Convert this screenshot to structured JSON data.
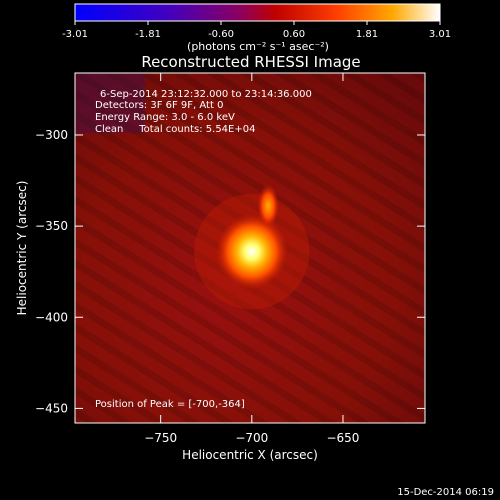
{
  "chart_data": {
    "type": "heatmap",
    "title": "Reconstructed RHESSI Image",
    "xlabel": "Heliocentric X (arcsec)",
    "ylabel": "Heliocentric Y (arcsec)",
    "xlim": [
      -797,
      -605
    ],
    "ylim": [
      -458,
      -266
    ],
    "x_ticks": [
      -750,
      -700,
      -650
    ],
    "y_ticks": [
      -300,
      -350,
      -400,
      -450
    ],
    "colorbar": {
      "label": "(photons cm⁻² s⁻¹ asec⁻²)",
      "range": [
        -3.01,
        3.01
      ],
      "ticks": [
        "-3.01",
        "-1.81",
        "-0.60",
        "0.60",
        "1.81",
        "3.01"
      ],
      "colors": [
        "#0000ff",
        "#3a00cc",
        "#7a0070",
        "#b40000",
        "#ff3a00",
        "#ffa000",
        "#ffff60",
        "#ffffff"
      ]
    },
    "info_lines": [
      "6-Sep-2014 23:12:32.000 to 23:14:36.000",
      "Detectors: 3F 6F 9F, Att 0",
      "Energy Range: 3.0 - 6.0 keV",
      "Clean     Total counts: 5.54E+04"
    ],
    "peak_label": "Position of Peak = [-700,-364]",
    "peak": [
      -700,
      -364
    ],
    "sources": [
      {
        "x": -700,
        "y": -364,
        "level": 3.0
      },
      {
        "x": -691,
        "y": -339,
        "level": 1.5
      }
    ]
  },
  "footer": {
    "date": "15-Dec-2014 06:19"
  }
}
